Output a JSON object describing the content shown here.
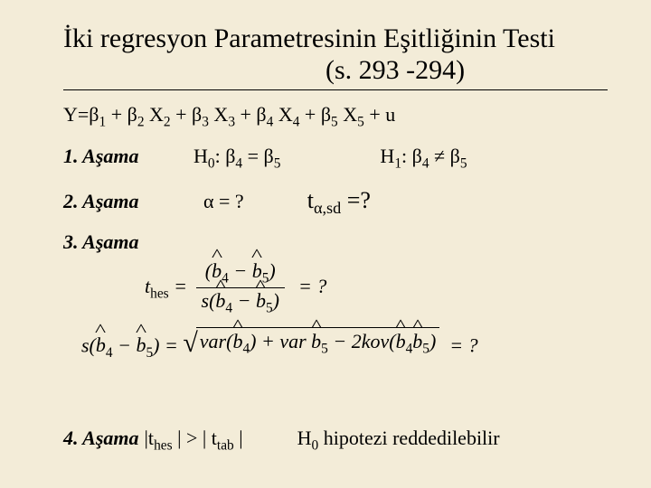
{
  "background_color": "#f3ecd8",
  "text_color": "#000000",
  "font_family": "Times New Roman",
  "title": {
    "line1": "İki regresyon Parametresinin Eşitliğinin Testi",
    "line2": "(s. 293 -294)",
    "fontsize": 30
  },
  "model": "Y=β1 + β2 X2 + β3 X3 + β4 X4 + β5 X5 + u",
  "steps": {
    "s1": {
      "label": "1. Aşama",
      "h0": "H0: β4 = β5",
      "h1": "H1: β4 ≠ β5"
    },
    "s2": {
      "label": "2. Aşama",
      "alpha": "α = ?",
      "tsd_html": "t<sub>α,sd</sub> =?"
    },
    "s3": {
      "label": "3. Aşama",
      "eq1": {
        "lhs": "t_hes",
        "rhs_q": "= ?"
      },
      "eq2": {
        "rhs_q": "= ?"
      }
    },
    "s4": {
      "label": "4. Aşama",
      "cond_html": "|t<sub>hes</sub> | &gt; | t<sub>tab</sub> |",
      "conclusion": "H0 hipotezi reddedilebilir"
    }
  }
}
